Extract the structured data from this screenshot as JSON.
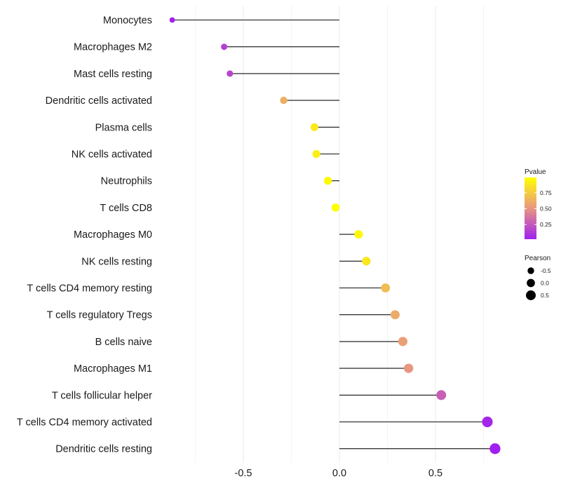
{
  "chart_data": {
    "type": "lollipop",
    "x_label": "",
    "y_label": "",
    "xlim": [
      -1.0,
      1.0
    ],
    "x_ticks": [
      -0.5,
      0.0,
      0.5
    ],
    "x_tick_labels": [
      "-0.5",
      "0.0",
      "0.5"
    ],
    "grid": true,
    "legend_placement": "right",
    "categories": [
      "Monocytes",
      "Macrophages M2",
      "Mast cells resting",
      "Dendritic cells activated",
      "Plasma cells",
      "NK cells activated",
      "Neutrophils",
      "T cells CD8",
      "Macrophages M0",
      "NK cells resting",
      "T cells CD4 memory resting",
      "T cells regulatory  Tregs",
      "B cells naive",
      "Macrophages M1",
      "T cells follicular helper",
      "T cells CD4 memory activated",
      "Dendritic cells resting"
    ],
    "pearson": [
      -0.87,
      -0.6,
      -0.57,
      -0.29,
      -0.13,
      -0.12,
      -0.06,
      -0.02,
      0.1,
      0.14,
      0.24,
      0.29,
      0.33,
      0.36,
      0.53,
      0.77,
      0.81
    ],
    "pvalue": [
      0.02,
      0.15,
      0.17,
      0.62,
      0.89,
      0.91,
      0.96,
      0.99,
      0.96,
      0.88,
      0.68,
      0.6,
      0.55,
      0.51,
      0.28,
      0.05,
      0.02
    ],
    "color_legend": {
      "title": "Pvalue",
      "ticks": [
        0.75,
        0.5,
        0.25
      ],
      "tick_labels": [
        "0.75",
        "0.50",
        "0.25"
      ],
      "range": [
        0.02,
        0.99
      ],
      "low_color": "#a020f0",
      "high_color": "#ffff00"
    },
    "size_legend": {
      "title": "Pearson",
      "values": [
        -0.5,
        0.0,
        0.5
      ],
      "labels": [
        "-0.5",
        "0.0",
        "0.5"
      ]
    }
  }
}
